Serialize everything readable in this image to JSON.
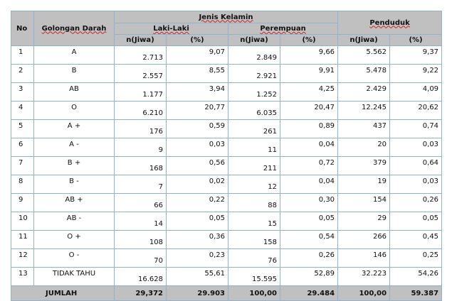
{
  "table": {
    "header": {
      "no": "No",
      "golongan": "Golongan Darah",
      "jenis_kelamin": "Jenis Kelamin",
      "laki": "Laki-Laki",
      "perempuan": "Perempuan",
      "penduduk": "Penduduk",
      "n_jiwa": "n(Jiwa)",
      "persen": "(%)"
    },
    "rows": [
      {
        "no": "1",
        "gol": "A",
        "l_n": "2.713",
        "l_p": "9,07",
        "p_n": "2.849",
        "p_p": "9,66",
        "t_n": "5.562",
        "t_p": "9,37"
      },
      {
        "no": "2",
        "gol": "B",
        "l_n": "2.557",
        "l_p": "8,55",
        "p_n": "2.921",
        "p_p": "9,91",
        "t_n": "5.478",
        "t_p": "9,22"
      },
      {
        "no": "3",
        "gol": "AB",
        "l_n": "1.177",
        "l_p": "3,94",
        "p_n": "1.252",
        "p_p": "4,25",
        "t_n": "2.429",
        "t_p": "4,09"
      },
      {
        "no": "4",
        "gol": "O",
        "l_n": "6.210",
        "l_p": "20,77",
        "p_n": "6.035",
        "p_p": "20,47",
        "t_n": "12.245",
        "t_p": "20,62"
      },
      {
        "no": "5",
        "gol": "A +",
        "l_n": "176",
        "l_p": "0,59",
        "p_n": "261",
        "p_p": "0,89",
        "t_n": "437",
        "t_p": "0,74"
      },
      {
        "no": "6",
        "gol": "A -",
        "l_n": "9",
        "l_p": "0,03",
        "p_n": "11",
        "p_p": "0,04",
        "t_n": "20",
        "t_p": "0,03"
      },
      {
        "no": "7",
        "gol": "B +",
        "l_n": "168",
        "l_p": "0,56",
        "p_n": "211",
        "p_p": "0,72",
        "t_n": "379",
        "t_p": "0,64"
      },
      {
        "no": "8",
        "gol": "B -",
        "l_n": "7",
        "l_p": "0,02",
        "p_n": "12",
        "p_p": "0,04",
        "t_n": "19",
        "t_p": "0,03"
      },
      {
        "no": "9",
        "gol": "AB +",
        "l_n": "66",
        "l_p": "0,22",
        "p_n": "88",
        "p_p": "0,30",
        "t_n": "154",
        "t_p": "0,26"
      },
      {
        "no": "10",
        "gol": "AB -",
        "l_n": "14",
        "l_p": "0,05",
        "p_n": "15",
        "p_p": "0,05",
        "t_n": "29",
        "t_p": "0,05"
      },
      {
        "no": "11",
        "gol": "O +",
        "l_n": "108",
        "l_p": "0,36",
        "p_n": "158",
        "p_p": "0,54",
        "t_n": "266",
        "t_p": "0,45"
      },
      {
        "no": "12",
        "gol": "O -",
        "l_n": "70",
        "l_p": "0,23",
        "p_n": "76",
        "p_p": "0,26",
        "t_n": "146",
        "t_p": "0,25"
      },
      {
        "no": "13",
        "gol": "TIDAK TAHU",
        "l_n": "16.628",
        "l_p": "55,61",
        "p_n": "15.595",
        "p_p": "52,89",
        "t_n": "32.223",
        "t_p": "54,26"
      }
    ],
    "footer": {
      "label": "JUMLAH",
      "v1": "29,372",
      "v2": "29.903",
      "v3": "100,00",
      "v4": "29.484",
      "v5": "100,00",
      "v6": "59.387"
    }
  }
}
